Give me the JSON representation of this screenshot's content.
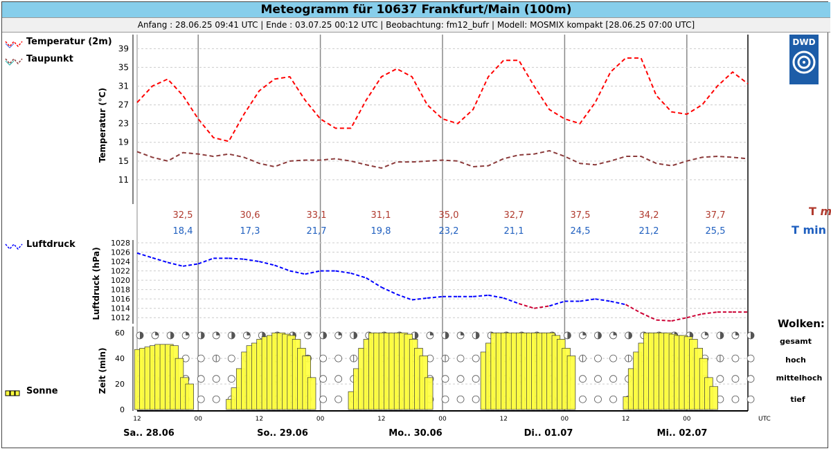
{
  "header": {
    "title": "Meteogramm für 10637 Frankfurt/Main (100m)",
    "subtitle": "Anfang : 28.06.25 09:41 UTC | Ende : 03.07.25 00:12 UTC | Beobachtung: fm12_bufr | Modell: MOSMIX kompakt [28.06.25 07:00 UTC]"
  },
  "logo": {
    "text": "DWD"
  },
  "legend": {
    "temperature": "Temperatur (2m)",
    "dewpoint": "Taupunkt",
    "pressure": "Luftdruck",
    "sun": "Sonne",
    "clouds_title": "Wolken:",
    "clouds_levels": [
      "gesamt",
      "hoch",
      "mittelhoch",
      "tief"
    ],
    "tmax_label": "T",
    "tmax_suffix": "max",
    "tmin_label": "T min"
  },
  "colors": {
    "temperature": "#ff0000",
    "dewpoint": "#8b3a3a",
    "pressure": "#0000ff",
    "pressure_low": "#cc0033",
    "tmax": "#b03a2e",
    "tmin": "#1f5fbf",
    "sun": "#ffff40",
    "title_bg": "#87ceeb",
    "logo": "#1d5da8"
  },
  "chart_data": [
    {
      "type": "line",
      "ylabel": "Temperatur (°C)",
      "yticks": [
        11,
        15,
        19,
        23,
        27,
        31,
        35,
        39
      ],
      "ylim": [
        7,
        42
      ],
      "xlim_hours": [
        12,
        132
      ],
      "series": [
        {
          "name": "Temperatur (2m)",
          "x": [
            12,
            15,
            18,
            21,
            24,
            27,
            30,
            33,
            36,
            39,
            42,
            45,
            48,
            51,
            54,
            57,
            60,
            63,
            66,
            69,
            72,
            75,
            78,
            81,
            84,
            87,
            90,
            93,
            96,
            99,
            102,
            105,
            108,
            111,
            114,
            117,
            120,
            123,
            126,
            129,
            132
          ],
          "values": [
            27.5,
            31,
            32.5,
            29,
            24,
            20,
            19.2,
            25,
            30,
            32.5,
            33,
            28,
            24,
            22,
            22,
            28,
            33,
            34.7,
            33,
            27,
            24,
            23,
            26,
            33,
            36.5,
            36.5,
            31,
            26,
            24,
            23,
            27.5,
            34,
            37,
            37,
            29,
            25.5,
            25,
            27,
            31,
            34,
            31.5
          ]
        },
        {
          "name": "Taupunkt",
          "x": [
            12,
            15,
            18,
            21,
            24,
            27,
            30,
            33,
            36,
            39,
            42,
            45,
            48,
            51,
            54,
            57,
            60,
            63,
            66,
            69,
            72,
            75,
            78,
            81,
            84,
            87,
            90,
            93,
            96,
            99,
            102,
            105,
            108,
            111,
            114,
            117,
            120,
            123,
            126,
            129,
            132
          ],
          "values": [
            17,
            15.8,
            15,
            16.8,
            16.5,
            16,
            16.5,
            15.8,
            14.5,
            13.8,
            15,
            15.2,
            15.2,
            15.5,
            15,
            14.2,
            13.5,
            14.8,
            14.8,
            15,
            15.2,
            15,
            13.8,
            14,
            15.5,
            16.3,
            16.5,
            17.2,
            16,
            14.5,
            14.2,
            15,
            16,
            16,
            14.5,
            14,
            15,
            15.8,
            16,
            15.8,
            15.5
          ]
        }
      ]
    },
    {
      "type": "table",
      "days": [
        "28.06",
        "29.06",
        "30.06",
        "01.07",
        "02.07"
      ],
      "tmax": [
        "32,5",
        "30,6",
        "33,1",
        "31,1",
        "35,0",
        "32,7",
        "37,5",
        "34,2",
        "37,7"
      ],
      "tmin": [
        "18,4",
        "17,3",
        "21,7",
        "19,8",
        "23,2",
        "21,1",
        "24,5",
        "21,2",
        "25,5"
      ]
    },
    {
      "type": "line",
      "ylabel": "Luftdruck (hPa)",
      "yticks": [
        1012,
        1014,
        1016,
        1018,
        1020,
        1022,
        1024,
        1026,
        1028
      ],
      "ylim": [
        1011,
        1028
      ],
      "series": [
        {
          "name": "Luftdruck",
          "x": [
            12,
            15,
            18,
            21,
            24,
            27,
            30,
            33,
            36,
            39,
            42,
            45,
            48,
            51,
            54,
            57,
            60,
            63,
            66,
            69,
            72,
            75,
            78,
            81,
            84,
            87,
            90,
            93,
            96,
            99,
            102,
            105,
            108,
            111,
            114,
            117,
            120,
            123,
            126,
            129,
            132
          ],
          "values": [
            1025.8,
            1024.8,
            1023.8,
            1023,
            1023.5,
            1024.7,
            1024.7,
            1024.5,
            1024,
            1023.2,
            1022,
            1021.3,
            1022,
            1022,
            1021.5,
            1020.5,
            1018.5,
            1017,
            1015.8,
            1016.2,
            1016.5,
            1016.5,
            1016.5,
            1016.8,
            1016.2,
            1015,
            1014,
            1014.5,
            1015.5,
            1015.5,
            1016,
            1015.5,
            1014.8,
            1013,
            1011.5,
            1011.3,
            1012,
            1012.8,
            1013.2,
            1013.2,
            1013.2
          ]
        }
      ]
    },
    {
      "type": "bar",
      "ylabel": "Zeit (min)",
      "yticks": [
        0,
        20,
        40,
        60
      ],
      "ylim": [
        0,
        65
      ],
      "xlabel": "UTC",
      "series": [
        {
          "name": "Sonne",
          "x": [
            12,
            13,
            14,
            15,
            16,
            17,
            18,
            19,
            20,
            21,
            22,
            23,
            24,
            25,
            26,
            27,
            28,
            29,
            30,
            31,
            32,
            33,
            34,
            35,
            36,
            37,
            38,
            39,
            40,
            41,
            42,
            43,
            44,
            45,
            46,
            47,
            48,
            49,
            50,
            51,
            52,
            53,
            54,
            55,
            56,
            57,
            58,
            59,
            60,
            61,
            62,
            63,
            64,
            65,
            66,
            67,
            68,
            69,
            70,
            71,
            72,
            73,
            74,
            75,
            76,
            77,
            78,
            79,
            80,
            81,
            82,
            83,
            84,
            85,
            86,
            87,
            88,
            89,
            90,
            91,
            92,
            93,
            94,
            95,
            96,
            97,
            98,
            99,
            100,
            101,
            102,
            103,
            104,
            105,
            106,
            107,
            108,
            109,
            110,
            111,
            112,
            113,
            114,
            115,
            116,
            117,
            118,
            119,
            120,
            121,
            122,
            123,
            124,
            125,
            126,
            127,
            128,
            129,
            130,
            131,
            132
          ],
          "values": [
            47,
            48,
            49,
            50,
            51,
            51,
            51,
            50,
            40,
            25,
            20,
            0,
            0,
            0,
            0,
            0,
            0,
            0,
            8,
            17,
            32,
            45,
            50,
            52,
            55,
            57,
            58,
            60,
            60,
            59,
            58,
            55,
            48,
            42,
            25,
            0,
            0,
            0,
            0,
            0,
            0,
            0,
            14,
            32,
            48,
            55,
            60,
            60,
            60,
            60,
            60,
            60,
            60,
            59,
            55,
            48,
            42,
            25,
            0,
            0,
            0,
            0,
            0,
            0,
            0,
            0,
            0,
            0,
            45,
            52,
            60,
            60,
            60,
            60,
            60,
            60,
            60,
            60,
            60,
            60,
            60,
            60,
            58,
            55,
            48,
            42,
            0,
            0,
            0,
            0,
            0,
            0,
            0,
            0,
            0,
            0,
            10,
            32,
            45,
            52,
            60,
            60,
            60,
            60,
            60,
            59,
            58,
            58,
            57,
            55,
            48,
            40,
            25,
            18,
            0,
            0,
            0,
            0,
            0,
            0,
            0
          ]
        }
      ],
      "xtick_labels": [
        "12",
        "00",
        "12",
        "00",
        "12",
        "00",
        "12",
        "00",
        "12",
        "00"
      ],
      "day_labels": [
        "Sa.. 28.06",
        "So.. 29.06",
        "Mo.. 30.06",
        "Di.. 01.07",
        "Mi.. 02.07"
      ]
    }
  ]
}
